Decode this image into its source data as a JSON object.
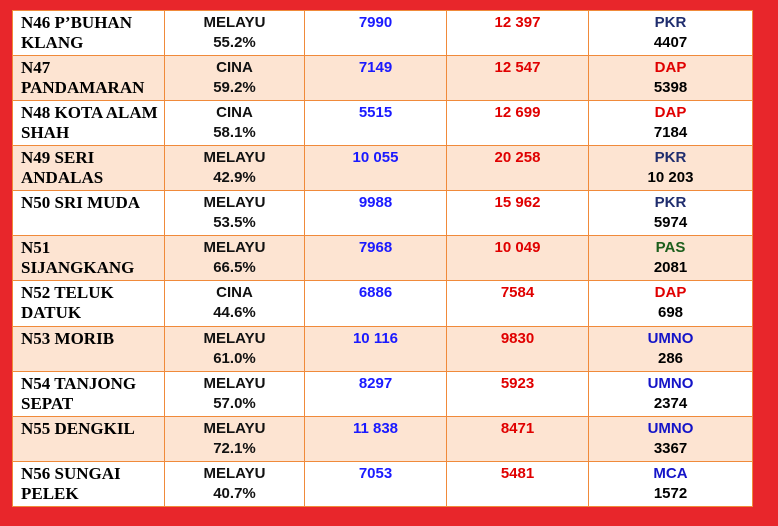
{
  "colors": {
    "PKR": "#1f2d6e",
    "DAP": "#e00000",
    "PAS": "#1c5e1c",
    "UMNO": "#1414c8",
    "MCA": "#1414c8"
  },
  "rows": [
    {
      "seat": [
        "N46 P’BUHAN",
        "KLANG"
      ],
      "race": "MELAYU",
      "pct": "55.2%",
      "blue": "7990",
      "red": "12 397",
      "party": "PKR",
      "majority": "4407"
    },
    {
      "seat": [
        "N47",
        "PANDAMARAN"
      ],
      "race": "CINA",
      "pct": "59.2%",
      "blue": "7149",
      "red": "12 547",
      "party": "DAP",
      "majority": "5398"
    },
    {
      "seat": [
        "N48 KOTA ALAM",
        "SHAH"
      ],
      "race": "CINA",
      "pct": "58.1%",
      "blue": "5515",
      "red": "12 699",
      "party": "DAP",
      "majority": "7184"
    },
    {
      "seat": [
        "N49 SERI",
        "ANDALAS"
      ],
      "race": "MELAYU",
      "pct": "42.9%",
      "blue": "10 055",
      "red": "20 258",
      "party": "PKR",
      "majority": "10 203"
    },
    {
      "seat": [
        "N50 SRI MUDA",
        ""
      ],
      "race": "MELAYU",
      "pct": "53.5%",
      "blue": "9988",
      "red": "15 962",
      "party": "PKR",
      "majority": "5974"
    },
    {
      "seat": [
        "N51",
        "SIJANGKANG"
      ],
      "race": "MELAYU",
      "pct": "66.5%",
      "blue": "7968",
      "red": "10 049",
      "party": "PAS",
      "majority": "2081"
    },
    {
      "seat": [
        "N52 TELUK",
        "DATUK"
      ],
      "race": "CINA",
      "pct": "44.6%",
      "blue": "6886",
      "red": "7584",
      "party": "DAP",
      "majority": "698"
    },
    {
      "seat": [
        "N53 MORIB",
        ""
      ],
      "race": "MELAYU",
      "pct": "61.0%",
      "blue": "10 116",
      "red": "9830",
      "party": "UMNO",
      "majority": "286"
    },
    {
      "seat": [
        "N54 TANJONG",
        "SEPAT"
      ],
      "race": "MELAYU",
      "pct": "57.0%",
      "blue": "8297",
      "red": "5923",
      "party": "UMNO",
      "majority": "2374"
    },
    {
      "seat": [
        "N55 DENGKIL",
        ""
      ],
      "race": "MELAYU",
      "pct": "72.1%",
      "blue": "11 838",
      "red": "8471",
      "party": "UMNO",
      "majority": "3367"
    },
    {
      "seat": [
        "N56 SUNGAI",
        "PELEK"
      ],
      "race": "MELAYU",
      "pct": "40.7%",
      "blue": "7053",
      "red": "5481",
      "party": "MCA",
      "majority": "1572"
    }
  ]
}
